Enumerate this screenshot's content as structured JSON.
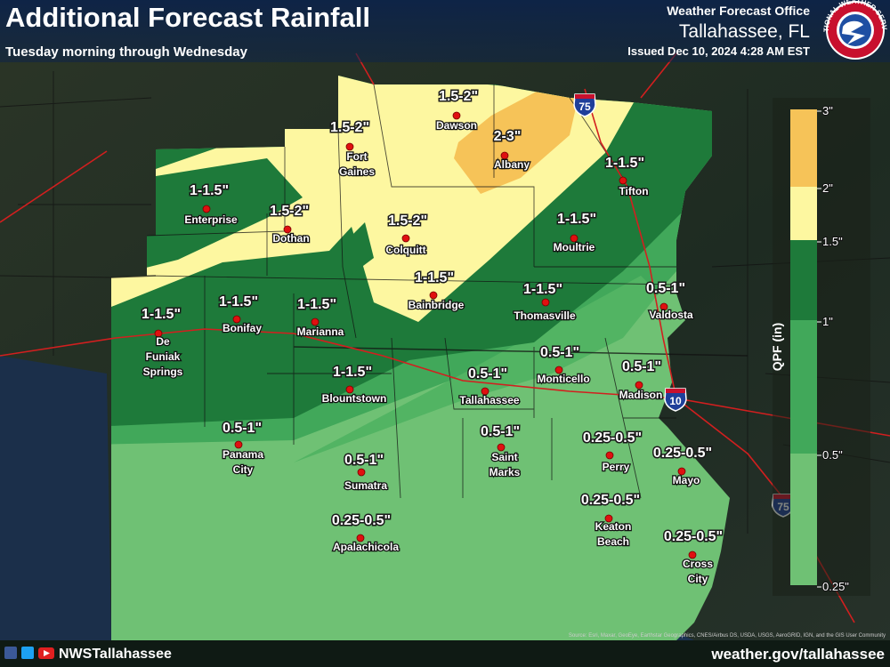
{
  "header": {
    "title": "Additional Forecast Rainfall",
    "subtitle": "Tuesday morning through Wednesday",
    "office": "Weather Forecast Office",
    "location": "Tallahassee, FL",
    "issued": "Issued Dec 10, 2024 4:28 AM EST",
    "logo_text": "NATIONAL WEATHER SERVICE"
  },
  "legend": {
    "title": "QPF (in)",
    "ticks": [
      "3\"",
      "2\"",
      "1.5\"",
      "1\"",
      "0.5\"",
      "0.25\""
    ]
  },
  "interstates": [
    "75",
    "10",
    "75"
  ],
  "cities": [
    {
      "name": [
        "Dawson"
      ],
      "amount": "1.5-2\""
    },
    {
      "name": [
        "Fort",
        "Gaines"
      ],
      "amount": "1.5-2\""
    },
    {
      "name": [
        "Albany"
      ],
      "amount": "2-3\""
    },
    {
      "name": [
        "Enterprise"
      ],
      "amount": "1-1.5\""
    },
    {
      "name": [
        "Dothan"
      ],
      "amount": "1.5-2\""
    },
    {
      "name": [
        "Colquitt"
      ],
      "amount": "1.5-2\""
    },
    {
      "name": [
        "Tifton"
      ],
      "amount": "1-1.5\""
    },
    {
      "name": [
        "Moultrie"
      ],
      "amount": "1-1.5\""
    },
    {
      "name": [
        "Bainbridge"
      ],
      "amount": "1-1.5\""
    },
    {
      "name": [
        "Thomasville"
      ],
      "amount": "1-1.5\""
    },
    {
      "name": [
        "Valdosta"
      ],
      "amount": "0.5-1\""
    },
    {
      "name": [
        "De",
        "Funiak",
        "Springs"
      ],
      "amount": "1-1.5\""
    },
    {
      "name": [
        "Bonifay"
      ],
      "amount": "1-1.5\""
    },
    {
      "name": [
        "Marianna"
      ],
      "amount": "1-1.5\""
    },
    {
      "name": [
        "Blountstown"
      ],
      "amount": "1-1.5\""
    },
    {
      "name": [
        "Tallahassee"
      ],
      "amount": "0.5-1\""
    },
    {
      "name": [
        "Monticello"
      ],
      "amount": "0.5-1\""
    },
    {
      "name": [
        "Madison"
      ],
      "amount": "0.5-1\""
    },
    {
      "name": [
        "Panama",
        "City"
      ],
      "amount": "0.5-1\""
    },
    {
      "name": [
        "Sumatra"
      ],
      "amount": "0.5-1\""
    },
    {
      "name": [
        "Saint",
        "Marks"
      ],
      "amount": "0.5-1\""
    },
    {
      "name": [
        "Perry"
      ],
      "amount": "0.25-0.5\""
    },
    {
      "name": [
        "Mayo"
      ],
      "amount": "0.25-0.5\""
    },
    {
      "name": [
        "Keaton",
        "Beach"
      ],
      "amount": "0.25-0.5\""
    },
    {
      "name": [
        "Apalachicola"
      ],
      "amount": "0.25-0.5\""
    },
    {
      "name": [
        "Cross",
        "City"
      ],
      "amount": "0.25-0.5\""
    }
  ],
  "footer": {
    "handle": "NWSTallahassee",
    "website": "weather.gov/tallahassee",
    "source": "Source: Esri, Maxar, GeoEye, Earthstar Geographics, CNES/Airbus DS, USDA, USGS, AeroGRID, IGN, and the GIS User Community"
  }
}
